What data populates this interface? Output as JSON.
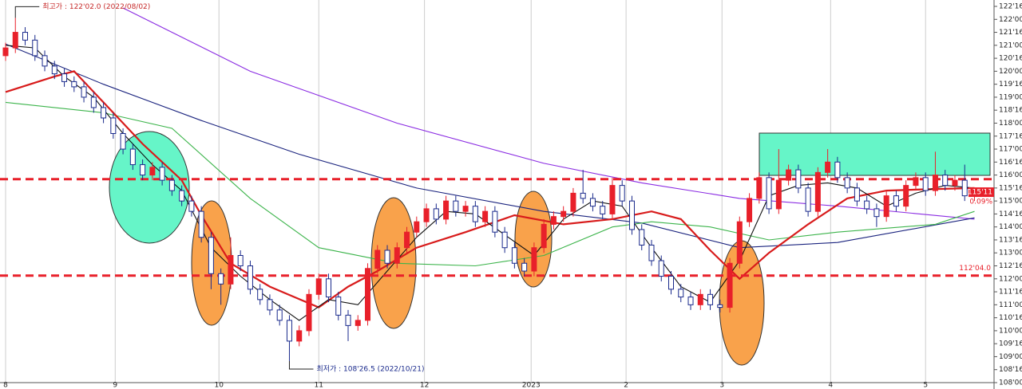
{
  "chart_data": {
    "type": "candlestick",
    "xlim": [
      0,
      101
    ],
    "xticks": [
      {
        "value": 0,
        "label": "8"
      },
      {
        "value": 11.2,
        "label": "9"
      },
      {
        "value": 21.8,
        "label": "10"
      },
      {
        "value": 32,
        "label": "11"
      },
      {
        "value": 42.8,
        "label": "12"
      },
      {
        "value": 53.7,
        "label": "2023"
      },
      {
        "value": 63.4,
        "label": "2"
      },
      {
        "value": 73.2,
        "label": "3"
      },
      {
        "value": 84.3,
        "label": "4"
      },
      {
        "value": 94,
        "label": "5"
      }
    ],
    "ylim": [
      108,
      122.5
    ],
    "yticks": [
      {
        "value": 122.5,
        "label": "122'16.0"
      },
      {
        "value": 122,
        "label": "122'00.0"
      },
      {
        "value": 121.5,
        "label": "121'16.0"
      },
      {
        "value": 121,
        "label": "121'00.0"
      },
      {
        "value": 120.5,
        "label": "120'16.0"
      },
      {
        "value": 120,
        "label": "120'00.0"
      },
      {
        "value": 119.5,
        "label": "119'16.0"
      },
      {
        "value": 119,
        "label": "119'00.0"
      },
      {
        "value": 118.5,
        "label": "118'16.0"
      },
      {
        "value": 118,
        "label": "118'00.0"
      },
      {
        "value": 117.5,
        "label": "117'16.0"
      },
      {
        "value": 117,
        "label": "117'00.0"
      },
      {
        "value": 116.5,
        "label": "116'16.0"
      },
      {
        "value": 116,
        "label": "116'00.0"
      },
      {
        "value": 115.5,
        "label": "115'16.0"
      },
      {
        "value": 115,
        "label": "115'00.0"
      },
      {
        "value": 114.5,
        "label": "114'16.0"
      },
      {
        "value": 114,
        "label": "114'00.0"
      },
      {
        "value": 113.5,
        "label": "113'16.0"
      },
      {
        "value": 113,
        "label": "113'00.0"
      },
      {
        "value": 112.5,
        "label": "112'16.0"
      },
      {
        "value": 112,
        "label": "112'00.0"
      },
      {
        "value": 111.5,
        "label": "111'16.0"
      },
      {
        "value": 111,
        "label": "111'00.0"
      },
      {
        "value": 110.5,
        "label": "110'16.0"
      },
      {
        "value": 110,
        "label": "110'00.0"
      },
      {
        "value": 109.5,
        "label": "109'16.0"
      },
      {
        "value": 109,
        "label": "109'00.0"
      },
      {
        "value": 108.5,
        "label": "108'16.0"
      },
      {
        "value": 108,
        "label": "108'00.0"
      }
    ],
    "up_color": "#e8202a",
    "down_color": "#1a2a8c",
    "candles": {
      "open": [
        120.6,
        120.9,
        121.5,
        121.2,
        120.6,
        120.2,
        119.9,
        119.6,
        119.4,
        119.0,
        118.6,
        118.2,
        117.6,
        117.0,
        116.4,
        116.0,
        116.3,
        115.8,
        115.4,
        115.0,
        114.6,
        113.6,
        112.2,
        111.8,
        112.9,
        112.5,
        111.6,
        111.2,
        110.8,
        110.4,
        109.6,
        110.0,
        111.4,
        112.0,
        111.3,
        110.6,
        110.2,
        110.4,
        112.4,
        113.1,
        112.6,
        113.2,
        113.8,
        114.2,
        114.7,
        114.3,
        115.0,
        114.6,
        114.8,
        114.2,
        114.6,
        113.8,
        113.2,
        112.6,
        112.3,
        113.2,
        114.1,
        114.4,
        114.6,
        115.3,
        115.1,
        114.8,
        114.5,
        115.6,
        115.0,
        113.9,
        113.3,
        112.7,
        112.1,
        111.6,
        111.3,
        111.0,
        111.4,
        111.0,
        110.9,
        112.6,
        114.2,
        115.1,
        115.9,
        114.7,
        115.8,
        116.2,
        115.5,
        114.6,
        116.1,
        116.5,
        115.9,
        115.5,
        115.0,
        114.7,
        114.4,
        115.2,
        114.8,
        115.6,
        115.9,
        115.4,
        116.0,
        115.6,
        115.8,
        115.2
      ],
      "high": [
        121.1,
        122.06,
        121.7,
        121.4,
        120.8,
        120.4,
        120.1,
        119.8,
        119.6,
        119.2,
        118.8,
        118.4,
        117.8,
        117.2,
        116.6,
        116.5,
        116.5,
        116.0,
        115.6,
        115.2,
        114.8,
        113.8,
        112.4,
        113.6,
        113.1,
        112.7,
        111.8,
        111.4,
        111.0,
        110.6,
        110.2,
        111.6,
        112.2,
        112.2,
        111.5,
        110.8,
        110.6,
        112.6,
        113.3,
        113.3,
        113.4,
        114.0,
        114.4,
        114.9,
        114.9,
        115.2,
        115.2,
        115.0,
        115.0,
        114.8,
        114.8,
        114.0,
        113.4,
        112.8,
        113.4,
        114.3,
        114.6,
        114.8,
        115.5,
        116.2,
        115.3,
        115.0,
        115.9,
        115.8,
        115.2,
        114.1,
        113.5,
        112.9,
        112.3,
        111.8,
        111.5,
        111.6,
        111.6,
        111.2,
        112.8,
        114.4,
        115.3,
        116.1,
        116.1,
        117.0,
        116.4,
        116.4,
        115.7,
        116.3,
        117.0,
        116.7,
        116.1,
        115.7,
        115.2,
        114.9,
        115.4,
        115.4,
        115.8,
        116.1,
        116.1,
        116.9,
        116.2,
        116.0,
        116.4,
        115.5
      ],
      "low": [
        120.4,
        120.7,
        121.0,
        120.4,
        120.0,
        119.7,
        119.4,
        119.2,
        118.8,
        118.4,
        118.0,
        117.4,
        116.8,
        116.2,
        115.8,
        115.8,
        115.6,
        115.2,
        114.8,
        114.4,
        113.4,
        111.6,
        111.0,
        111.6,
        112.3,
        111.4,
        111.0,
        110.6,
        110.2,
        108.83,
        109.4,
        109.8,
        111.2,
        111.1,
        110.4,
        109.6,
        110.0,
        110.2,
        112.2,
        112.4,
        112.4,
        113.0,
        113.6,
        114.0,
        114.1,
        114.1,
        114.4,
        114.4,
        114.0,
        114.0,
        113.6,
        113.0,
        112.4,
        112.1,
        112.1,
        113.0,
        113.9,
        114.2,
        114.4,
        114.9,
        114.6,
        114.3,
        114.3,
        114.8,
        113.7,
        113.1,
        112.5,
        111.9,
        111.4,
        111.1,
        110.8,
        110.8,
        110.8,
        110.7,
        110.7,
        112.4,
        114.0,
        114.9,
        114.5,
        114.5,
        115.6,
        115.3,
        114.4,
        114.4,
        115.9,
        115.7,
        115.3,
        114.8,
        114.5,
        114.0,
        114.2,
        114.6,
        114.6,
        115.4,
        115.2,
        115.2,
        115.4,
        115.4,
        115.0,
        115.0
      ],
      "close": [
        120.9,
        121.5,
        121.2,
        120.6,
        120.2,
        119.9,
        119.6,
        119.4,
        119.0,
        118.6,
        118.2,
        117.6,
        117.0,
        116.4,
        116.0,
        116.3,
        115.8,
        115.4,
        115.0,
        114.6,
        113.6,
        112.2,
        111.8,
        112.9,
        112.5,
        111.6,
        111.2,
        110.8,
        110.4,
        109.6,
        110.0,
        111.4,
        112.0,
        111.3,
        110.6,
        110.2,
        110.4,
        112.4,
        113.1,
        112.6,
        113.2,
        113.8,
        114.2,
        114.7,
        114.3,
        115.0,
        114.6,
        114.8,
        114.2,
        114.6,
        113.8,
        113.2,
        112.6,
        112.3,
        113.2,
        114.1,
        114.4,
        114.6,
        115.3,
        115.1,
        114.8,
        114.5,
        115.6,
        115.0,
        113.9,
        113.3,
        112.7,
        112.1,
        111.6,
        111.3,
        111.0,
        111.4,
        111.0,
        110.9,
        112.6,
        114.2,
        115.1,
        115.9,
        114.7,
        115.8,
        116.2,
        115.5,
        114.6,
        116.1,
        116.5,
        115.9,
        115.5,
        115.0,
        114.7,
        114.4,
        115.2,
        114.8,
        115.6,
        115.9,
        115.4,
        116.0,
        115.6,
        115.8,
        115.2,
        115.35
      ]
    },
    "series": [
      {
        "color": "#8a2be2",
        "x": [
          12,
          25,
          40,
          55,
          65,
          75,
          85,
          99
        ],
        "values": [
          122.44,
          120.0,
          118.0,
          116.45,
          115.7,
          115.1,
          114.8,
          114.3
        ]
      },
      {
        "color": "#1a237e",
        "x": [
          0,
          10,
          20,
          30,
          42,
          55,
          65,
          75,
          85,
          99
        ],
        "values": [
          121.05,
          119.5,
          118.1,
          116.8,
          115.5,
          114.6,
          114.15,
          113.2,
          113.4,
          114.35
        ]
      },
      {
        "color": "#3cb44b",
        "x": [
          0,
          10,
          17,
          25,
          32,
          40,
          48,
          55,
          62,
          66,
          72,
          78,
          85,
          95,
          99
        ],
        "values": [
          118.8,
          118.4,
          117.8,
          115.1,
          113.2,
          112.6,
          112.5,
          112.9,
          114.0,
          114.2,
          114.0,
          113.5,
          113.8,
          114.1,
          114.6
        ]
      },
      {
        "color": "#d81b1b",
        "x": [
          0,
          5,
          7,
          10,
          14,
          18,
          20,
          23,
          27,
          32,
          35,
          38,
          42,
          47,
          52,
          57,
          62,
          66,
          69,
          72,
          75,
          78,
          82,
          86,
          90,
          94,
          99
        ],
        "values": [
          119.2,
          119.8,
          120.0,
          118.8,
          117.2,
          115.8,
          114.45,
          112.6,
          111.7,
          110.9,
          111.7,
          112.3,
          113.2,
          113.8,
          114.45,
          114.1,
          114.3,
          114.6,
          114.3,
          113.1,
          112.0,
          113.0,
          114.1,
          115.1,
          115.4,
          115.45,
          115.5
        ]
      },
      {
        "color": "#111111",
        "x": [
          0,
          3,
          6,
          9,
          12,
          15,
          18,
          21,
          24,
          27,
          30,
          33,
          36,
          39,
          42,
          45,
          48,
          51,
          54,
          57,
          60,
          63,
          66,
          69,
          72,
          75,
          78,
          81,
          84,
          87,
          90,
          93,
          96,
          99
        ],
        "values": [
          121.0,
          120.9,
          119.8,
          119.0,
          117.6,
          116.4,
          115.4,
          113.2,
          112.1,
          111.2,
          110.4,
          111.2,
          111.0,
          112.3,
          113.6,
          114.6,
          114.5,
          113.7,
          112.9,
          114.3,
          115.0,
          114.8,
          113.2,
          111.7,
          111.1,
          112.7,
          115.2,
          115.6,
          115.7,
          115.5,
          114.8,
          115.3,
          115.6,
          115.5
        ]
      }
    ],
    "hlines": [
      {
        "value": 115.84
      },
      {
        "value": 112.125,
        "label": "112'04.0"
      }
    ],
    "annotations": {
      "high": {
        "text": "최고가 : 122'02.0 (2022/08/02)",
        "index": 1,
        "value": 122.06
      },
      "low": {
        "text": "최저가 : 108'26.5 (2022/10/21)",
        "index": 29,
        "value": 108.83
      }
    },
    "last_price": {
      "value": 115.34,
      "label": "115'11",
      "change": "0.09%"
    }
  }
}
